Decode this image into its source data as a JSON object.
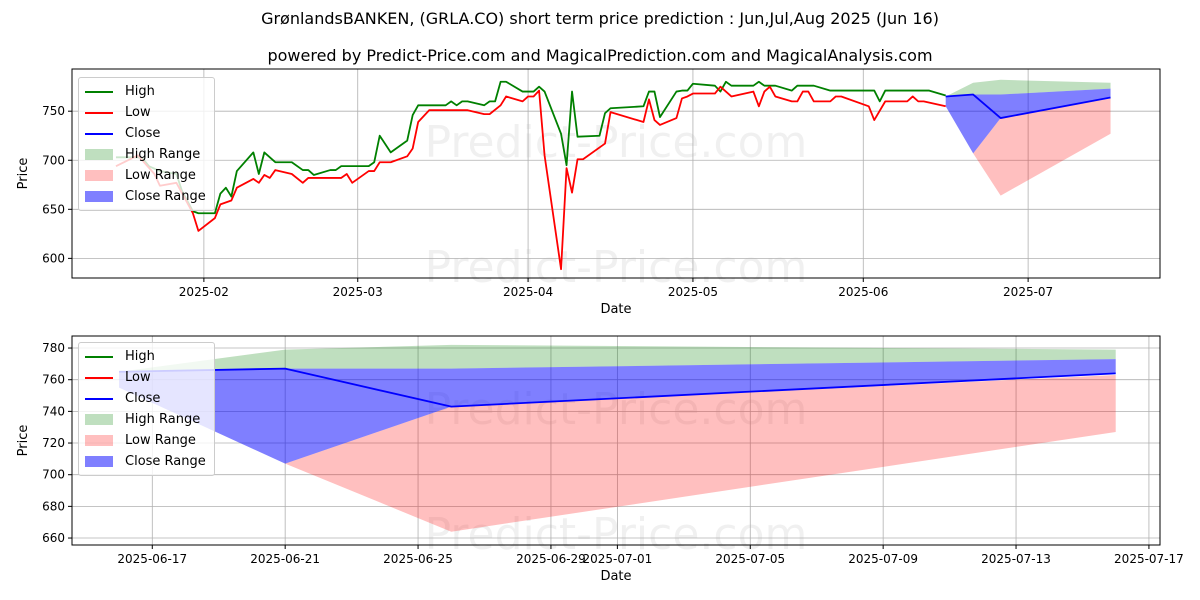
{
  "title": "GrønlandsBANKEN, (GRLA.CO) short term price prediction : Jun,Jul,Aug 2025 (Jun 16)",
  "subtitle": "powered by Predict-Price.com and MagicalPrediction.com and MagicalAnalysis.com",
  "watermark": "Predict-Price.com",
  "colors": {
    "high": "#008000",
    "low": "#ff0000",
    "close": "#0000ff",
    "high_range": "rgba(0,128,0,0.25)",
    "low_range": "rgba(255,0,0,0.25)",
    "close_range": "rgba(0,0,255,0.5)"
  },
  "legend": [
    "High",
    "Low",
    "Close",
    "High Range",
    "Low Range",
    "Close Range"
  ],
  "chart_data": [
    {
      "type": "line",
      "xlabel": "Date",
      "ylabel": "Price",
      "xlim": [
        "2025-01-08",
        "2025-07-25"
      ],
      "ylim": [
        580,
        793
      ],
      "yticks": [
        600,
        650,
        700,
        750
      ],
      "xticks": [
        {
          "date": "2025-02-01",
          "label": "2025-02"
        },
        {
          "date": "2025-03-01",
          "label": "2025-03"
        },
        {
          "date": "2025-04-01",
          "label": "2025-04"
        },
        {
          "date": "2025-05-01",
          "label": "2025-05"
        },
        {
          "date": "2025-06-01",
          "label": "2025-06"
        },
        {
          "date": "2025-07-01",
          "label": "2025-07"
        }
      ],
      "grid": true,
      "legend_position": "upper-left",
      "high": [
        [
          "2025-01-16",
          703
        ],
        [
          "2025-01-20",
          703
        ],
        [
          "2025-01-21",
          701
        ],
        [
          "2025-01-22",
          694
        ],
        [
          "2025-01-24",
          689
        ],
        [
          "2025-01-27",
          686
        ],
        [
          "2025-01-28",
          669
        ],
        [
          "2025-01-30",
          648
        ],
        [
          "2025-01-31",
          646
        ],
        [
          "2025-02-03",
          646
        ],
        [
          "2025-02-04",
          666
        ],
        [
          "2025-02-05",
          672
        ],
        [
          "2025-02-06",
          663
        ],
        [
          "2025-02-07",
          689
        ],
        [
          "2025-02-10",
          708
        ],
        [
          "2025-02-11",
          686
        ],
        [
          "2025-02-12",
          708
        ],
        [
          "2025-02-14",
          698
        ],
        [
          "2025-02-17",
          698
        ],
        [
          "2025-02-19",
          690
        ],
        [
          "2025-02-20",
          690
        ],
        [
          "2025-02-21",
          685
        ],
        [
          "2025-02-24",
          690
        ],
        [
          "2025-02-25",
          690
        ],
        [
          "2025-02-26",
          694
        ],
        [
          "2025-03-03",
          694
        ],
        [
          "2025-03-04",
          698
        ],
        [
          "2025-03-05",
          725
        ],
        [
          "2025-03-07",
          708
        ],
        [
          "2025-03-10",
          720
        ],
        [
          "2025-03-11",
          746
        ],
        [
          "2025-03-12",
          756
        ],
        [
          "2025-03-17",
          756
        ],
        [
          "2025-03-18",
          760
        ],
        [
          "2025-03-19",
          756
        ],
        [
          "2025-03-20",
          760
        ],
        [
          "2025-03-21",
          760
        ],
        [
          "2025-03-24",
          756
        ],
        [
          "2025-03-25",
          760
        ],
        [
          "2025-03-26",
          760
        ],
        [
          "2025-03-27",
          780
        ],
        [
          "2025-03-28",
          780
        ],
        [
          "2025-03-31",
          770
        ],
        [
          "2025-04-02",
          770
        ],
        [
          "2025-04-03",
          775
        ],
        [
          "2025-04-04",
          770
        ],
        [
          "2025-04-07",
          727
        ],
        [
          "2025-04-08",
          695
        ],
        [
          "2025-04-09",
          770
        ],
        [
          "2025-04-10",
          724
        ],
        [
          "2025-04-14",
          725
        ],
        [
          "2025-04-15",
          748
        ],
        [
          "2025-04-16",
          753
        ],
        [
          "2025-04-22",
          755
        ],
        [
          "2025-04-23",
          770
        ],
        [
          "2025-04-24",
          770
        ],
        [
          "2025-04-25",
          744
        ],
        [
          "2025-04-28",
          770
        ],
        [
          "2025-04-29",
          771
        ],
        [
          "2025-04-30",
          771
        ],
        [
          "2025-05-01",
          778
        ],
        [
          "2025-05-05",
          776
        ],
        [
          "2025-05-06",
          770
        ],
        [
          "2025-05-07",
          780
        ],
        [
          "2025-05-08",
          776
        ],
        [
          "2025-05-12",
          776
        ],
        [
          "2025-05-13",
          780
        ],
        [
          "2025-05-14",
          776
        ],
        [
          "2025-05-16",
          776
        ],
        [
          "2025-05-19",
          771
        ],
        [
          "2025-05-20",
          776
        ],
        [
          "2025-05-23",
          776
        ],
        [
          "2025-05-26",
          771
        ],
        [
          "2025-06-03",
          771
        ],
        [
          "2025-06-04",
          760
        ],
        [
          "2025-06-05",
          771
        ],
        [
          "2025-06-13",
          771
        ],
        [
          "2025-06-16",
          766
        ]
      ],
      "low": [
        [
          "2025-01-16",
          694
        ],
        [
          "2025-01-20",
          705
        ],
        [
          "2025-01-23",
          686
        ],
        [
          "2025-01-24",
          674
        ],
        [
          "2025-01-27",
          677
        ],
        [
          "2025-01-30",
          646
        ],
        [
          "2025-01-31",
          628
        ],
        [
          "2025-02-03",
          641
        ],
        [
          "2025-02-04",
          655
        ],
        [
          "2025-02-06",
          659
        ],
        [
          "2025-02-07",
          672
        ],
        [
          "2025-02-10",
          681
        ],
        [
          "2025-02-11",
          677
        ],
        [
          "2025-02-12",
          685
        ],
        [
          "2025-02-13",
          682
        ],
        [
          "2025-02-14",
          690
        ],
        [
          "2025-02-17",
          686
        ],
        [
          "2025-02-19",
          677
        ],
        [
          "2025-02-20",
          682
        ],
        [
          "2025-02-26",
          682
        ],
        [
          "2025-02-27",
          686
        ],
        [
          "2025-02-28",
          677
        ],
        [
          "2025-03-03",
          689
        ],
        [
          "2025-03-04",
          689
        ],
        [
          "2025-03-05",
          698
        ],
        [
          "2025-03-07",
          698
        ],
        [
          "2025-03-10",
          704
        ],
        [
          "2025-03-11",
          712
        ],
        [
          "2025-03-12",
          739
        ],
        [
          "2025-03-14",
          751
        ],
        [
          "2025-03-21",
          751
        ],
        [
          "2025-03-24",
          747
        ],
        [
          "2025-03-25",
          747
        ],
        [
          "2025-03-27",
          756
        ],
        [
          "2025-03-28",
          765
        ],
        [
          "2025-03-31",
          760
        ],
        [
          "2025-04-01",
          765
        ],
        [
          "2025-04-02",
          765
        ],
        [
          "2025-04-03",
          771
        ],
        [
          "2025-04-04",
          705
        ],
        [
          "2025-04-07",
          589
        ],
        [
          "2025-04-08",
          692
        ],
        [
          "2025-04-09",
          667
        ],
        [
          "2025-04-10",
          701
        ],
        [
          "2025-04-11",
          701
        ],
        [
          "2025-04-15",
          717
        ],
        [
          "2025-04-16",
          749
        ],
        [
          "2025-04-22",
          739
        ],
        [
          "2025-04-23",
          762
        ],
        [
          "2025-04-24",
          741
        ],
        [
          "2025-04-25",
          736
        ],
        [
          "2025-04-28",
          743
        ],
        [
          "2025-04-29",
          763
        ],
        [
          "2025-04-30",
          765
        ],
        [
          "2025-05-01",
          768
        ],
        [
          "2025-05-05",
          768
        ],
        [
          "2025-05-06",
          775
        ],
        [
          "2025-05-08",
          765
        ],
        [
          "2025-05-12",
          770
        ],
        [
          "2025-05-13",
          755
        ],
        [
          "2025-05-14",
          770
        ],
        [
          "2025-05-15",
          775
        ],
        [
          "2025-05-16",
          765
        ],
        [
          "2025-05-19",
          760
        ],
        [
          "2025-05-20",
          760
        ],
        [
          "2025-05-21",
          770
        ],
        [
          "2025-05-22",
          770
        ],
        [
          "2025-05-23",
          760
        ],
        [
          "2025-05-26",
          760
        ],
        [
          "2025-05-27",
          765
        ],
        [
          "2025-05-28",
          765
        ],
        [
          "2025-06-02",
          755
        ],
        [
          "2025-06-03",
          741
        ],
        [
          "2025-06-05",
          760
        ],
        [
          "2025-06-09",
          760
        ],
        [
          "2025-06-10",
          765
        ],
        [
          "2025-06-11",
          760
        ],
        [
          "2025-06-12",
          760
        ],
        [
          "2025-06-16",
          755
        ]
      ],
      "use_prediction": true
    },
    {
      "type": "line",
      "xlabel": "Date",
      "ylabel": "Price",
      "xlim": [
        "2025-06-14T14:00",
        "2025-07-17T08:00"
      ],
      "ylim": [
        655.6,
        787.6
      ],
      "yticks": [
        660,
        680,
        700,
        720,
        740,
        760,
        780
      ],
      "xticks": [
        {
          "date": "2025-06-17",
          "label": "2025-06-17"
        },
        {
          "date": "2025-06-21",
          "label": "2025-06-21"
        },
        {
          "date": "2025-06-25",
          "label": "2025-06-25"
        },
        {
          "date": "2025-06-29",
          "label": "2025-06-29"
        },
        {
          "date": "2025-07-01",
          "label": "2025-07-01"
        },
        {
          "date": "2025-07-05",
          "label": "2025-07-05"
        },
        {
          "date": "2025-07-09",
          "label": "2025-07-09"
        },
        {
          "date": "2025-07-13",
          "label": "2025-07-13"
        },
        {
          "date": "2025-07-17",
          "label": "2025-07-17"
        }
      ],
      "grid": true,
      "legend_position": "upper-left",
      "high": [],
      "low": [],
      "use_prediction": true
    }
  ],
  "prediction": {
    "dates": [
      "2025-06-16",
      "2025-06-21",
      "2025-06-26",
      "2025-07-16"
    ],
    "close": [
      765,
      767,
      743,
      764
    ],
    "high_range_upper": [
      765,
      779,
      782,
      779
    ],
    "high_range_lower": [
      765,
      767,
      767,
      773
    ],
    "close_range_upper": [
      765,
      767,
      767,
      773
    ],
    "close_range_lower": [
      755,
      707,
      743,
      764
    ],
    "low_range_upper": [
      755,
      707,
      743,
      763
    ],
    "low_range_lower": [
      755,
      707,
      664,
      727
    ]
  }
}
